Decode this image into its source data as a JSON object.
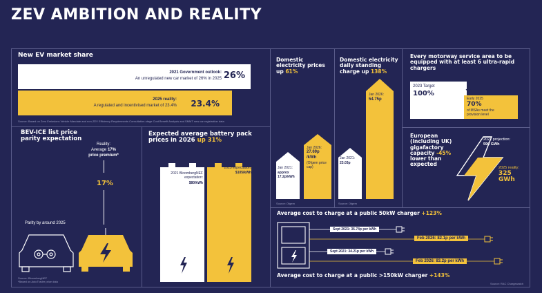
{
  "title": "ZEV AMBITION AND REALITY",
  "market_share": {
    "heading": "New EV market share",
    "outlook_title": "2021 Government outlook:",
    "outlook_text": "An unregulated new car market of 26% in 2025",
    "outlook_value": "26%",
    "reality_title": "2025 reality:",
    "reality_text": "A regulated and incentivised market of 23.4%",
    "reality_value": "23.4%",
    "source": "Source: Based on Zero Emissions Vehicle Mandate and non-ZEV Efficiency Requirements Consultation-stage Cost Benefit Analysis and SMMT new car registration data"
  },
  "parity": {
    "heading": "BEV-ICE list price parity expectation",
    "reality_label": "Reality:",
    "reality_line": "Average",
    "reality_pct": "17%",
    "reality_suffix": "price premium*",
    "big_pct": "17%",
    "parity_text": "Parity by around 2025",
    "source1": "Source: BloombergNEF",
    "source2": "*Based on AutoTrader price data"
  },
  "battery": {
    "heading": "Expected average battery pack prices in 2026",
    "heading_up": "up 31%",
    "bnef_label": "2021 BloombergNEF expectation:",
    "bnef_value": "$80/kWh",
    "exp_label": "2025 expectation:",
    "exp_value": "$105/kWh"
  },
  "domestic_price": {
    "heading": "Domestic electricity prices up",
    "heading_pct": "61%",
    "jan21_label": "Jan 2021:",
    "jan21_value": "approx 17.2p/kWh",
    "jan26_label": "Jan 2026:",
    "jan26_value": "27.69p /kWh",
    "jan26_note": "(Ofgem price cap)",
    "source": "Source: Ofgem"
  },
  "standing": {
    "heading": "Domestic electricity daily standing charge up",
    "heading_pct": "138%",
    "jan21_label": "Jan 2021:",
    "jan21_value": "23.03p",
    "jan26_label": "Jan 2026:",
    "jan26_value": "54.75p",
    "source": "Source: Ofgem"
  },
  "motorway": {
    "heading": "Every motorway service area to be equipped with at least 6 ultra-rapid chargers",
    "target_label": "2023 Target",
    "target_value": "100%",
    "early_label": "Early 2025",
    "early_value": "70%",
    "early_text": "of MSAs meet the provision level"
  },
  "gigafactory": {
    "heading": "European (including UK) gigafactory capacity",
    "heading_pct": "-45%",
    "heading_tail": "lower than expected",
    "proj_label": "2021 projection:",
    "proj_value": "590 GWh",
    "reality_label": "2025 reality:",
    "reality_value": "325 GWh"
  },
  "charging": {
    "heading50": "Average cost to charge at a public 50kW charger",
    "heading50_pct": "+123%",
    "sept21_50": "Sept 2021: 36.74p per kWh",
    "feb26_50": "Feb 2026: 82.1p per kWh",
    "sept21_150": "Sept 2021: 34.21p per kWh",
    "feb26_150": "Feb 2026: 83.2p per kWh",
    "heading150": "Average cost to charge at a public >150kW charger",
    "heading150_pct": "+143%",
    "source": "Source: RAC Chargewatch"
  },
  "colors": {
    "navy": "#232554",
    "yellow": "#f3c23b",
    "white": "#ffffff"
  }
}
